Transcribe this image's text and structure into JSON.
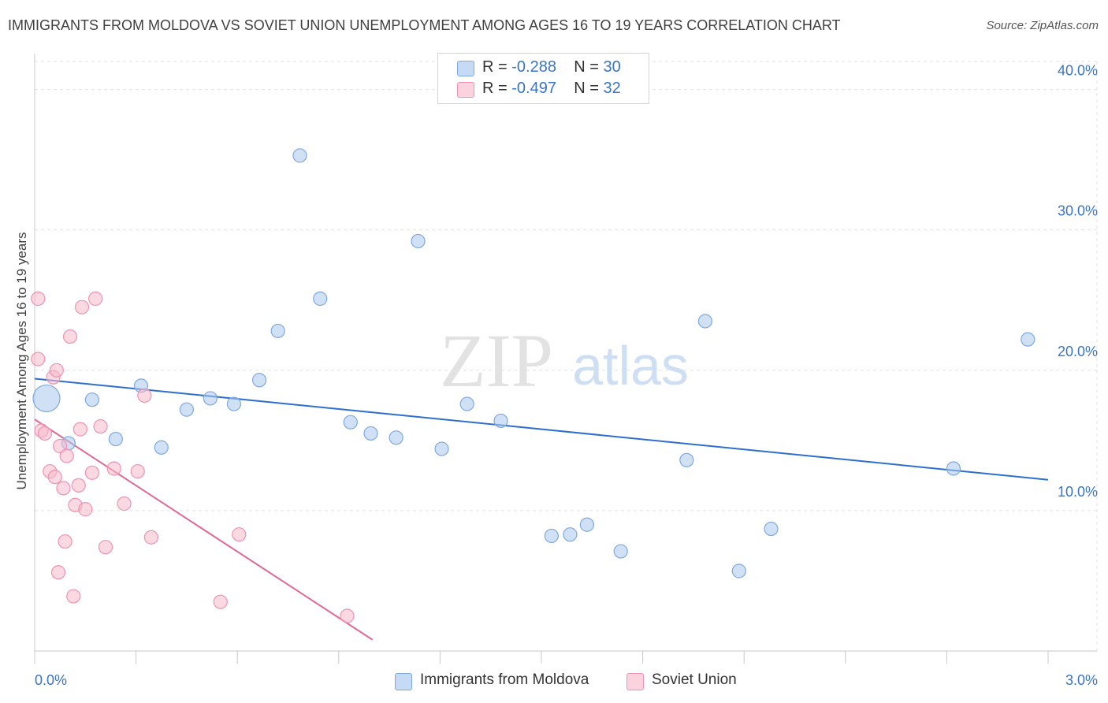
{
  "title": "IMMIGRANTS FROM MOLDOVA VS SOVIET UNION UNEMPLOYMENT AMONG AGES 16 TO 19 YEARS CORRELATION CHART",
  "source": "Source: ZipAtlas.com",
  "watermark": {
    "zip": "ZIP",
    "atlas": "atlas"
  },
  "legend": {
    "rows": [
      {
        "r_label": "R =",
        "r_value": "-0.288",
        "n_label": "N =",
        "n_value": "30",
        "color": "#a9c8ef"
      },
      {
        "r_label": "R =",
        "r_value": "-0.497",
        "n_label": "N =",
        "n_value": "32",
        "color": "#f7b9cc"
      }
    ]
  },
  "bottom_legend": [
    {
      "label": "Immigrants from Moldova",
      "color": "#a9c8ef"
    },
    {
      "label": "Soviet Union",
      "color": "#f7b9cc"
    }
  ],
  "chart_data": {
    "type": "scatter",
    "title": "IMMIGRANTS FROM MOLDOVA VS SOVIET UNION UNEMPLOYMENT AMONG AGES 16 TO 19 YEARS CORRELATION CHART",
    "xlabel": "",
    "ylabel": "Unemployment Among Ages 16 to 19 years",
    "xlim": [
      0,
      3.0
    ],
    "ylim": [
      0,
      42
    ],
    "x_ticks": [
      "0.0%",
      "3.0%"
    ],
    "y_ticks": [
      {
        "value": 10,
        "label": "10.0%"
      },
      {
        "value": 20,
        "label": "20.0%"
      },
      {
        "value": 30,
        "label": "30.0%"
      },
      {
        "value": 40,
        "label": "40.0%"
      }
    ],
    "grid": true,
    "legend_position": "top-center",
    "series": [
      {
        "name": "Immigrants from Moldova",
        "color": "#a9c8ef",
        "stroke": "#7fa9df",
        "trend": {
          "x": [
            0.0,
            3.0
          ],
          "y": [
            19.4,
            12.2
          ],
          "color": "#2d6fcc"
        },
        "points": [
          {
            "x": 0.035,
            "y": 18.0,
            "big": true
          },
          {
            "x": 0.1,
            "y": 14.8
          },
          {
            "x": 0.17,
            "y": 17.9
          },
          {
            "x": 0.24,
            "y": 15.1
          },
          {
            "x": 0.315,
            "y": 18.9
          },
          {
            "x": 0.375,
            "y": 14.5
          },
          {
            "x": 0.45,
            "y": 17.2
          },
          {
            "x": 0.52,
            "y": 18.0
          },
          {
            "x": 0.59,
            "y": 17.6
          },
          {
            "x": 0.665,
            "y": 19.3
          },
          {
            "x": 0.72,
            "y": 22.8
          },
          {
            "x": 0.785,
            "y": 35.3
          },
          {
            "x": 0.845,
            "y": 25.1
          },
          {
            "x": 0.935,
            "y": 16.3
          },
          {
            "x": 0.995,
            "y": 15.5
          },
          {
            "x": 1.07,
            "y": 15.2
          },
          {
            "x": 1.135,
            "y": 29.2
          },
          {
            "x": 1.205,
            "y": 14.4
          },
          {
            "x": 1.28,
            "y": 17.6
          },
          {
            "x": 1.38,
            "y": 16.4
          },
          {
            "x": 1.53,
            "y": 8.2
          },
          {
            "x": 1.585,
            "y": 8.3
          },
          {
            "x": 1.635,
            "y": 9.0
          },
          {
            "x": 1.735,
            "y": 7.1
          },
          {
            "x": 1.93,
            "y": 13.6
          },
          {
            "x": 1.985,
            "y": 23.5
          },
          {
            "x": 2.085,
            "y": 5.7
          },
          {
            "x": 2.18,
            "y": 8.7
          },
          {
            "x": 2.72,
            "y": 13.0
          },
          {
            "x": 2.94,
            "y": 22.2
          }
        ]
      },
      {
        "name": "Soviet Union",
        "color": "#f7b9cc",
        "stroke": "#ef93b0",
        "trend": {
          "x": [
            0.0,
            1.0
          ],
          "y": [
            16.5,
            0.8
          ],
          "color": "#e06a95"
        },
        "points": [
          {
            "x": 0.01,
            "y": 25.1
          },
          {
            "x": 0.01,
            "y": 20.8
          },
          {
            "x": 0.02,
            "y": 15.7
          },
          {
            "x": 0.03,
            "y": 15.5
          },
          {
            "x": 0.045,
            "y": 12.8
          },
          {
            "x": 0.055,
            "y": 19.5
          },
          {
            "x": 0.06,
            "y": 12.4
          },
          {
            "x": 0.065,
            "y": 20.0
          },
          {
            "x": 0.07,
            "y": 5.6
          },
          {
            "x": 0.075,
            "y": 14.6
          },
          {
            "x": 0.085,
            "y": 11.6
          },
          {
            "x": 0.09,
            "y": 7.8
          },
          {
            "x": 0.095,
            "y": 13.9
          },
          {
            "x": 0.105,
            "y": 22.4
          },
          {
            "x": 0.115,
            "y": 3.9
          },
          {
            "x": 0.12,
            "y": 10.4
          },
          {
            "x": 0.13,
            "y": 11.8
          },
          {
            "x": 0.135,
            "y": 15.8
          },
          {
            "x": 0.14,
            "y": 24.5
          },
          {
            "x": 0.15,
            "y": 10.1
          },
          {
            "x": 0.17,
            "y": 12.7
          },
          {
            "x": 0.18,
            "y": 25.1
          },
          {
            "x": 0.195,
            "y": 16.0
          },
          {
            "x": 0.21,
            "y": 7.4
          },
          {
            "x": 0.235,
            "y": 13.0
          },
          {
            "x": 0.265,
            "y": 10.5
          },
          {
            "x": 0.305,
            "y": 12.8
          },
          {
            "x": 0.325,
            "y": 18.2
          },
          {
            "x": 0.345,
            "y": 8.1
          },
          {
            "x": 0.55,
            "y": 3.5
          },
          {
            "x": 0.605,
            "y": 8.3
          },
          {
            "x": 0.925,
            "y": 2.5
          }
        ]
      }
    ]
  }
}
